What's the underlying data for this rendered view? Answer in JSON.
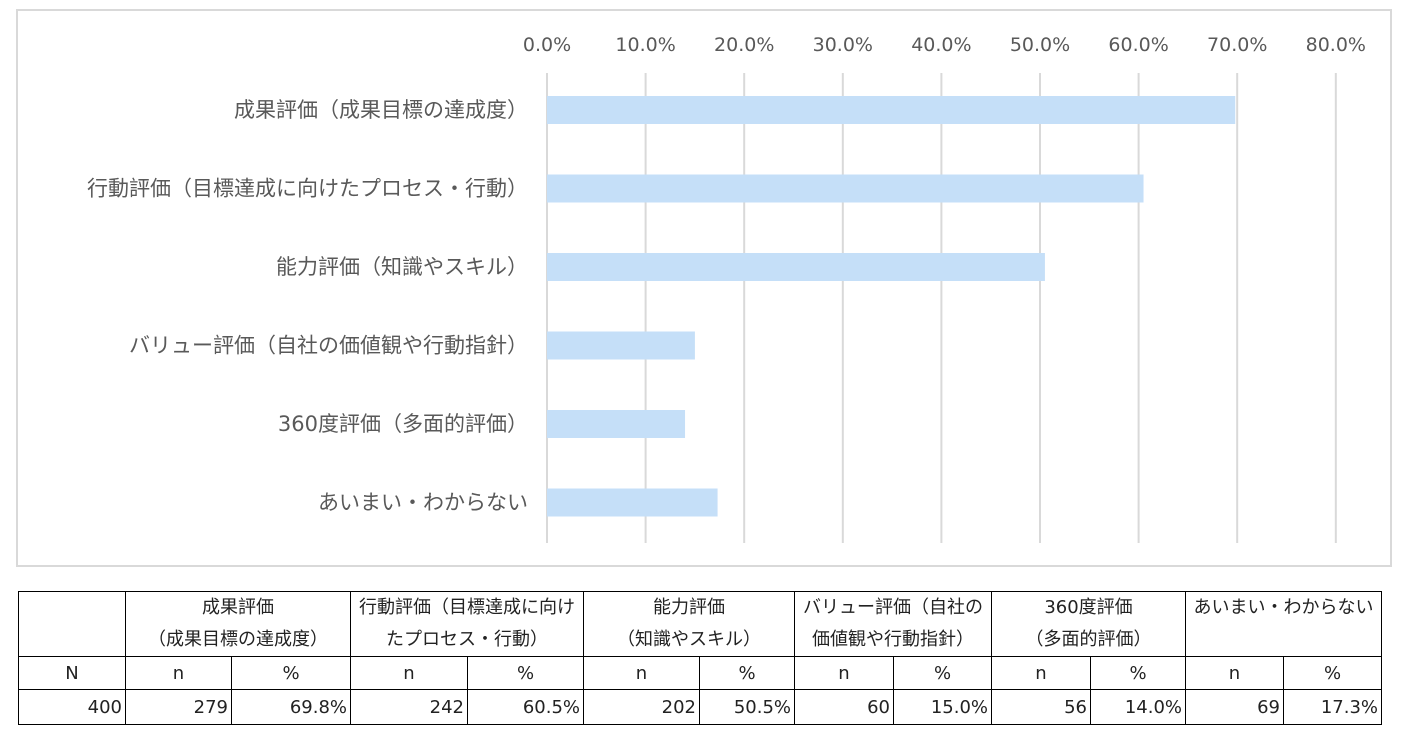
{
  "chart_data": {
    "type": "bar",
    "orientation": "horizontal",
    "categories": [
      "成果評価（成果目標の達成度）",
      "行動評価（目標達成に向けたプロセス・行動）",
      "能力評価（知識やスキル）",
      "バリュー評価（自社の価値観や行動指針）",
      "360度評価（多面的評価）",
      "あいまい・わからない"
    ],
    "values": [
      69.8,
      60.5,
      50.5,
      15.0,
      14.0,
      17.3
    ],
    "xlim": [
      0,
      80
    ],
    "xticks": [
      "0.0%",
      "10.0%",
      "20.0%",
      "30.0%",
      "40.0%",
      "50.0%",
      "60.0%",
      "70.0%",
      "80.0%"
    ],
    "tick_values": [
      0,
      10,
      20,
      30,
      40,
      50,
      60,
      70,
      80
    ],
    "bar_color": "#c5dff8",
    "grid_color": "#d9d9d9",
    "grid": true,
    "axis_position": "top"
  },
  "table": {
    "corner": "",
    "groups": [
      {
        "line1": "成果評価",
        "line2": "（成果目標の達成度）",
        "align": "center"
      },
      {
        "line1": "行動評価（目標達成に向け",
        "line2": "たプロセス・行動）",
        "align": "left"
      },
      {
        "line1": "能力評価",
        "line2": "（知識やスキル）",
        "align": "center"
      },
      {
        "line1": "バリュー評価（自社の",
        "line2": "価値観や行動指針）",
        "align": "left"
      },
      {
        "line1": "360度評価",
        "line2": "（多面的評価）",
        "align": "center"
      },
      {
        "line1": "あいまい・わからない",
        "line2": "",
        "align": "left"
      }
    ],
    "n_header": "N",
    "sub_n": "n",
    "sub_pct": "%",
    "N": "400",
    "rows": [
      {
        "n": "279",
        "pct": "69.8%"
      },
      {
        "n": "242",
        "pct": "60.5%"
      },
      {
        "n": "202",
        "pct": "50.5%"
      },
      {
        "n": "60",
        "pct": "15.0%"
      },
      {
        "n": "56",
        "pct": "14.0%"
      },
      {
        "n": "69",
        "pct": "17.3%"
      }
    ]
  }
}
